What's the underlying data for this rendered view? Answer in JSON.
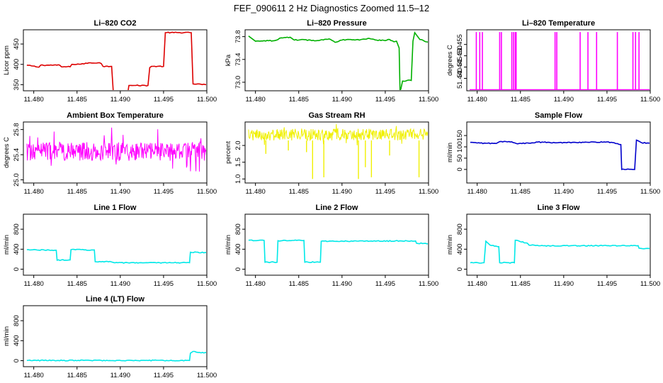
{
  "figure": {
    "title": "FEF_090611  2 Hz Diagnostics Zoomed 11.5–12"
  },
  "chart_data": [
    {
      "type": "line",
      "title": "Li–820 CO2",
      "ylabel": "Licor ppm",
      "xlim": [
        11.4788,
        11.5
      ],
      "xticks": [
        11.48,
        11.485,
        11.49,
        11.495,
        11.5
      ],
      "xtick_labels": [
        "11.480",
        "11.485",
        "11.490",
        "11.495",
        "11.500"
      ],
      "ylim": [
        335,
        485
      ],
      "yticks": [
        350,
        400,
        450
      ],
      "ytick_labels": [
        "350",
        "400",
        "450"
      ],
      "color": "#dd0000",
      "series": [
        {
          "x": [
            11.4792,
            11.4806,
            11.4808,
            11.483,
            11.4832,
            11.4842,
            11.4844,
            11.4858,
            11.486,
            11.4876,
            11.4878,
            11.488,
            11.489,
            11.4892,
            11.4896,
            11.4898,
            11.4908,
            11.491,
            11.4916,
            11.4918,
            11.4932,
            11.4934,
            11.4936,
            11.495,
            11.4952,
            11.4982,
            11.4984,
            11.5
          ],
          "y": [
            398,
            393,
            398,
            398,
            394,
            394,
            400,
            401,
            403,
            404,
            402,
            395,
            395,
            328,
            328,
            321,
            321,
            348,
            348,
            348,
            348,
            392,
            395,
            395,
            478,
            478,
            352,
            350
          ]
        }
      ]
    },
    {
      "type": "line",
      "title": "Li–820 Pressure",
      "ylabel": "kPa",
      "xlim": [
        11.4788,
        11.5
      ],
      "xticks": [
        11.48,
        11.485,
        11.49,
        11.495,
        11.5
      ],
      "xtick_labels": [
        "11.480",
        "11.485",
        "11.490",
        "11.495",
        "11.500"
      ],
      "ylim": [
        72.85,
        73.92
      ],
      "yticks": [
        73.0,
        73.4,
        73.8
      ],
      "ytick_labels": [
        "73.0",
        "73.4",
        "73.8"
      ],
      "color": "#00b000",
      "series": [
        {
          "x": [
            11.4792,
            11.48,
            11.481,
            11.4822,
            11.483,
            11.484,
            11.4845,
            11.4855,
            11.4865,
            11.4875,
            11.4885,
            11.4892,
            11.49,
            11.491,
            11.492,
            11.493,
            11.494,
            11.495,
            11.4955,
            11.496,
            11.4963,
            11.4966,
            11.4967,
            11.4968,
            11.497,
            11.4975,
            11.498,
            11.4982,
            11.4984,
            11.499,
            11.5
          ],
          "y": [
            73.81,
            73.72,
            73.73,
            73.73,
            73.78,
            73.79,
            73.74,
            73.75,
            73.73,
            73.74,
            73.76,
            73.7,
            73.74,
            73.75,
            73.74,
            73.77,
            73.74,
            73.73,
            73.75,
            73.71,
            73.72,
            73.6,
            72.86,
            72.88,
            73.02,
            73.03,
            73.03,
            73.72,
            73.87,
            73.75,
            73.7
          ]
        }
      ]
    },
    {
      "type": "line",
      "title": "Li–820 Temperature",
      "ylabel": "degrees C",
      "xlim": [
        11.4788,
        11.5
      ],
      "xticks": [
        11.48,
        11.485,
        11.49,
        11.495,
        11.5
      ],
      "xtick_labels": [
        "11.480",
        "11.485",
        "11.490",
        "11.495",
        "11.500"
      ],
      "ylim": [
        51.4345,
        51.4615
      ],
      "yticks": [
        51.44,
        51.445,
        51.45,
        51.455
      ],
      "ytick_labels": [
        "51.440",
        "51.445",
        "51.450",
        "51.455"
      ],
      "color": "#ff00ff",
      "baseline": 51.435,
      "spike_value": 51.4605,
      "spikes_x": [
        11.4799,
        11.4803,
        11.4806,
        11.4826,
        11.4828,
        11.484,
        11.4842,
        11.4844,
        11.4845,
        11.489,
        11.4892,
        11.4919,
        11.4928,
        11.4938,
        11.4962,
        11.498,
        11.4983,
        11.4987
      ]
    },
    {
      "type": "line",
      "title": "Ambient Box Temperature",
      "ylabel": "degrees C",
      "xlim": [
        11.4788,
        11.5
      ],
      "xticks": [
        11.48,
        11.485,
        11.49,
        11.495,
        11.5
      ],
      "xtick_labels": [
        "11.480",
        "11.485",
        "11.490",
        "11.495",
        "11.500"
      ],
      "ylim": [
        24.95,
        25.92
      ],
      "yticks": [
        25.0,
        25.4,
        25.8
      ],
      "ytick_labels": [
        "25.0",
        "25.4",
        "25.8"
      ],
      "color": "#ff00ff",
      "band": {
        "x_start": 11.4792,
        "x_end": 11.5,
        "low": 25.3,
        "high": 25.6,
        "noise_low": 25.08,
        "noise_high": 25.85
      }
    },
    {
      "type": "line",
      "title": "Gas Stream RH",
      "ylabel": "percent",
      "xlim": [
        11.4788,
        11.5
      ],
      "xticks": [
        11.48,
        11.485,
        11.49,
        11.495,
        11.5
      ],
      "xtick_labels": [
        "11.480",
        "11.485",
        "11.490",
        "11.495",
        "11.500"
      ],
      "ylim": [
        0.88,
        2.7
      ],
      "yticks": [
        1.0,
        1.5,
        2.0
      ],
      "ytick_labels": [
        "1.0",
        "1.5",
        "2.0"
      ],
      "color": "#f0f000",
      "band": {
        "x_start": 11.4792,
        "x_end": 11.5,
        "low": 2.15,
        "high": 2.5,
        "noise_low": 2.0,
        "noise_high": 2.65
      },
      "dips": [
        {
          "x": 11.4812,
          "y": 1.75
        },
        {
          "x": 11.4838,
          "y": 1.85
        },
        {
          "x": 11.4859,
          "y": 1.8
        },
        {
          "x": 11.4866,
          "y": 1.0
        },
        {
          "x": 11.4879,
          "y": 1.05
        },
        {
          "x": 11.4919,
          "y": 1.0
        },
        {
          "x": 11.4927,
          "y": 1.35
        },
        {
          "x": 11.4934,
          "y": 1.05
        },
        {
          "x": 11.4955,
          "y": 1.7
        },
        {
          "x": 11.4989,
          "y": 1.05
        }
      ]
    },
    {
      "type": "line",
      "title": "Sample Flow",
      "ylabel": "ml/min",
      "xlim": [
        11.4788,
        11.5
      ],
      "xticks": [
        11.48,
        11.485,
        11.49,
        11.495,
        11.5
      ],
      "xtick_labels": [
        "11.480",
        "11.485",
        "11.490",
        "11.495",
        "11.500"
      ],
      "ylim": [
        -60,
        210
      ],
      "yticks": [
        0,
        50,
        100,
        150
      ],
      "ytick_labels": [
        "0",
        "50",
        "100",
        "150"
      ],
      "color": "#0000cc",
      "series": [
        {
          "x": [
            11.4792,
            11.48,
            11.481,
            11.4822,
            11.4826,
            11.484,
            11.4845,
            11.486,
            11.487,
            11.489,
            11.491,
            11.493,
            11.495,
            11.496,
            11.4966,
            11.4967,
            11.4972,
            11.498,
            11.4982,
            11.4984,
            11.499,
            11.5
          ],
          "y": [
            120,
            117,
            116,
            115,
            123,
            122,
            115,
            116,
            121,
            118,
            120,
            120,
            122,
            115,
            110,
            0,
            0,
            0,
            0,
            130,
            118,
            116
          ]
        }
      ]
    },
    {
      "type": "line",
      "title": "Line 1 Flow",
      "ylabel": "ml/min",
      "xlim": [
        11.4788,
        11.5
      ],
      "xticks": [
        11.48,
        11.485,
        11.49,
        11.495,
        11.5
      ],
      "xtick_labels": [
        "11.480",
        "11.485",
        "11.490",
        "11.495",
        "11.500"
      ],
      "ylim": [
        -120,
        1100
      ],
      "yticks": [
        0,
        400,
        800
      ],
      "ytick_labels": [
        "0",
        "400",
        "800"
      ],
      "color": "#00e8e8",
      "series": [
        {
          "x": [
            11.4792,
            11.4826,
            11.4827,
            11.4842,
            11.4843,
            11.487,
            11.4871,
            11.4888,
            11.4889,
            11.4893,
            11.4894,
            11.498,
            11.4981,
            11.5
          ],
          "y": [
            390,
            380,
            180,
            185,
            390,
            385,
            150,
            155,
            150,
            130,
            130,
            130,
            340,
            330
          ]
        }
      ]
    },
    {
      "type": "line",
      "title": "Line 2 Flow",
      "ylabel": "ml/min",
      "xlim": [
        11.4788,
        11.5
      ],
      "xticks": [
        11.48,
        11.485,
        11.49,
        11.495,
        11.5
      ],
      "xtick_labels": [
        "11.480",
        "11.485",
        "11.490",
        "11.495",
        "11.500"
      ],
      "ylim": [
        -120,
        1100
      ],
      "yticks": [
        0,
        400,
        800
      ],
      "ytick_labels": [
        "0",
        "400",
        "800"
      ],
      "color": "#00e8e8",
      "series": [
        {
          "x": [
            11.4792,
            11.481,
            11.4811,
            11.4825,
            11.4826,
            11.4856,
            11.4857,
            11.4875,
            11.4876,
            11.4985,
            11.4986,
            11.5
          ],
          "y": [
            580,
            575,
            140,
            140,
            570,
            575,
            140,
            140,
            560,
            565,
            520,
            510
          ]
        }
      ]
    },
    {
      "type": "line",
      "title": "Line 3 Flow",
      "ylabel": "ml/min",
      "xlim": [
        11.4788,
        11.5
      ],
      "xticks": [
        11.48,
        11.485,
        11.49,
        11.495,
        11.5
      ],
      "xtick_labels": [
        "11.480",
        "11.485",
        "11.490",
        "11.495",
        "11.500"
      ],
      "ylim": [
        -120,
        1100
      ],
      "yticks": [
        0,
        400,
        800
      ],
      "ytick_labels": [
        "0",
        "400",
        "800"
      ],
      "color": "#00e8e8",
      "series": [
        {
          "x": [
            11.4792,
            11.4808,
            11.481,
            11.4815,
            11.4825,
            11.4826,
            11.4843,
            11.4844,
            11.4858,
            11.486,
            11.4866,
            11.488,
            11.4881,
            11.4986,
            11.4987,
            11.5
          ],
          "y": [
            130,
            130,
            560,
            480,
            450,
            130,
            130,
            580,
            520,
            480,
            480,
            460,
            470,
            470,
            420,
            410
          ]
        }
      ]
    },
    {
      "type": "line",
      "title": "Line 4 (LT) Flow",
      "ylabel": "ml/min",
      "xlim": [
        11.4788,
        11.5
      ],
      "xticks": [
        11.48,
        11.485,
        11.49,
        11.495,
        11.5
      ],
      "xtick_labels": [
        "11.480",
        "11.485",
        "11.490",
        "11.495",
        "11.500"
      ],
      "ylim": [
        -120,
        1100
      ],
      "yticks": [
        0,
        400,
        800
      ],
      "ytick_labels": [
        "0",
        "400",
        "800"
      ],
      "color": "#00e8e8",
      "series": [
        {
          "x": [
            11.4792,
            11.498,
            11.4981,
            11.4984,
            11.499,
            11.5
          ],
          "y": [
            5,
            5,
            150,
            185,
            165,
            160
          ]
        }
      ]
    }
  ]
}
